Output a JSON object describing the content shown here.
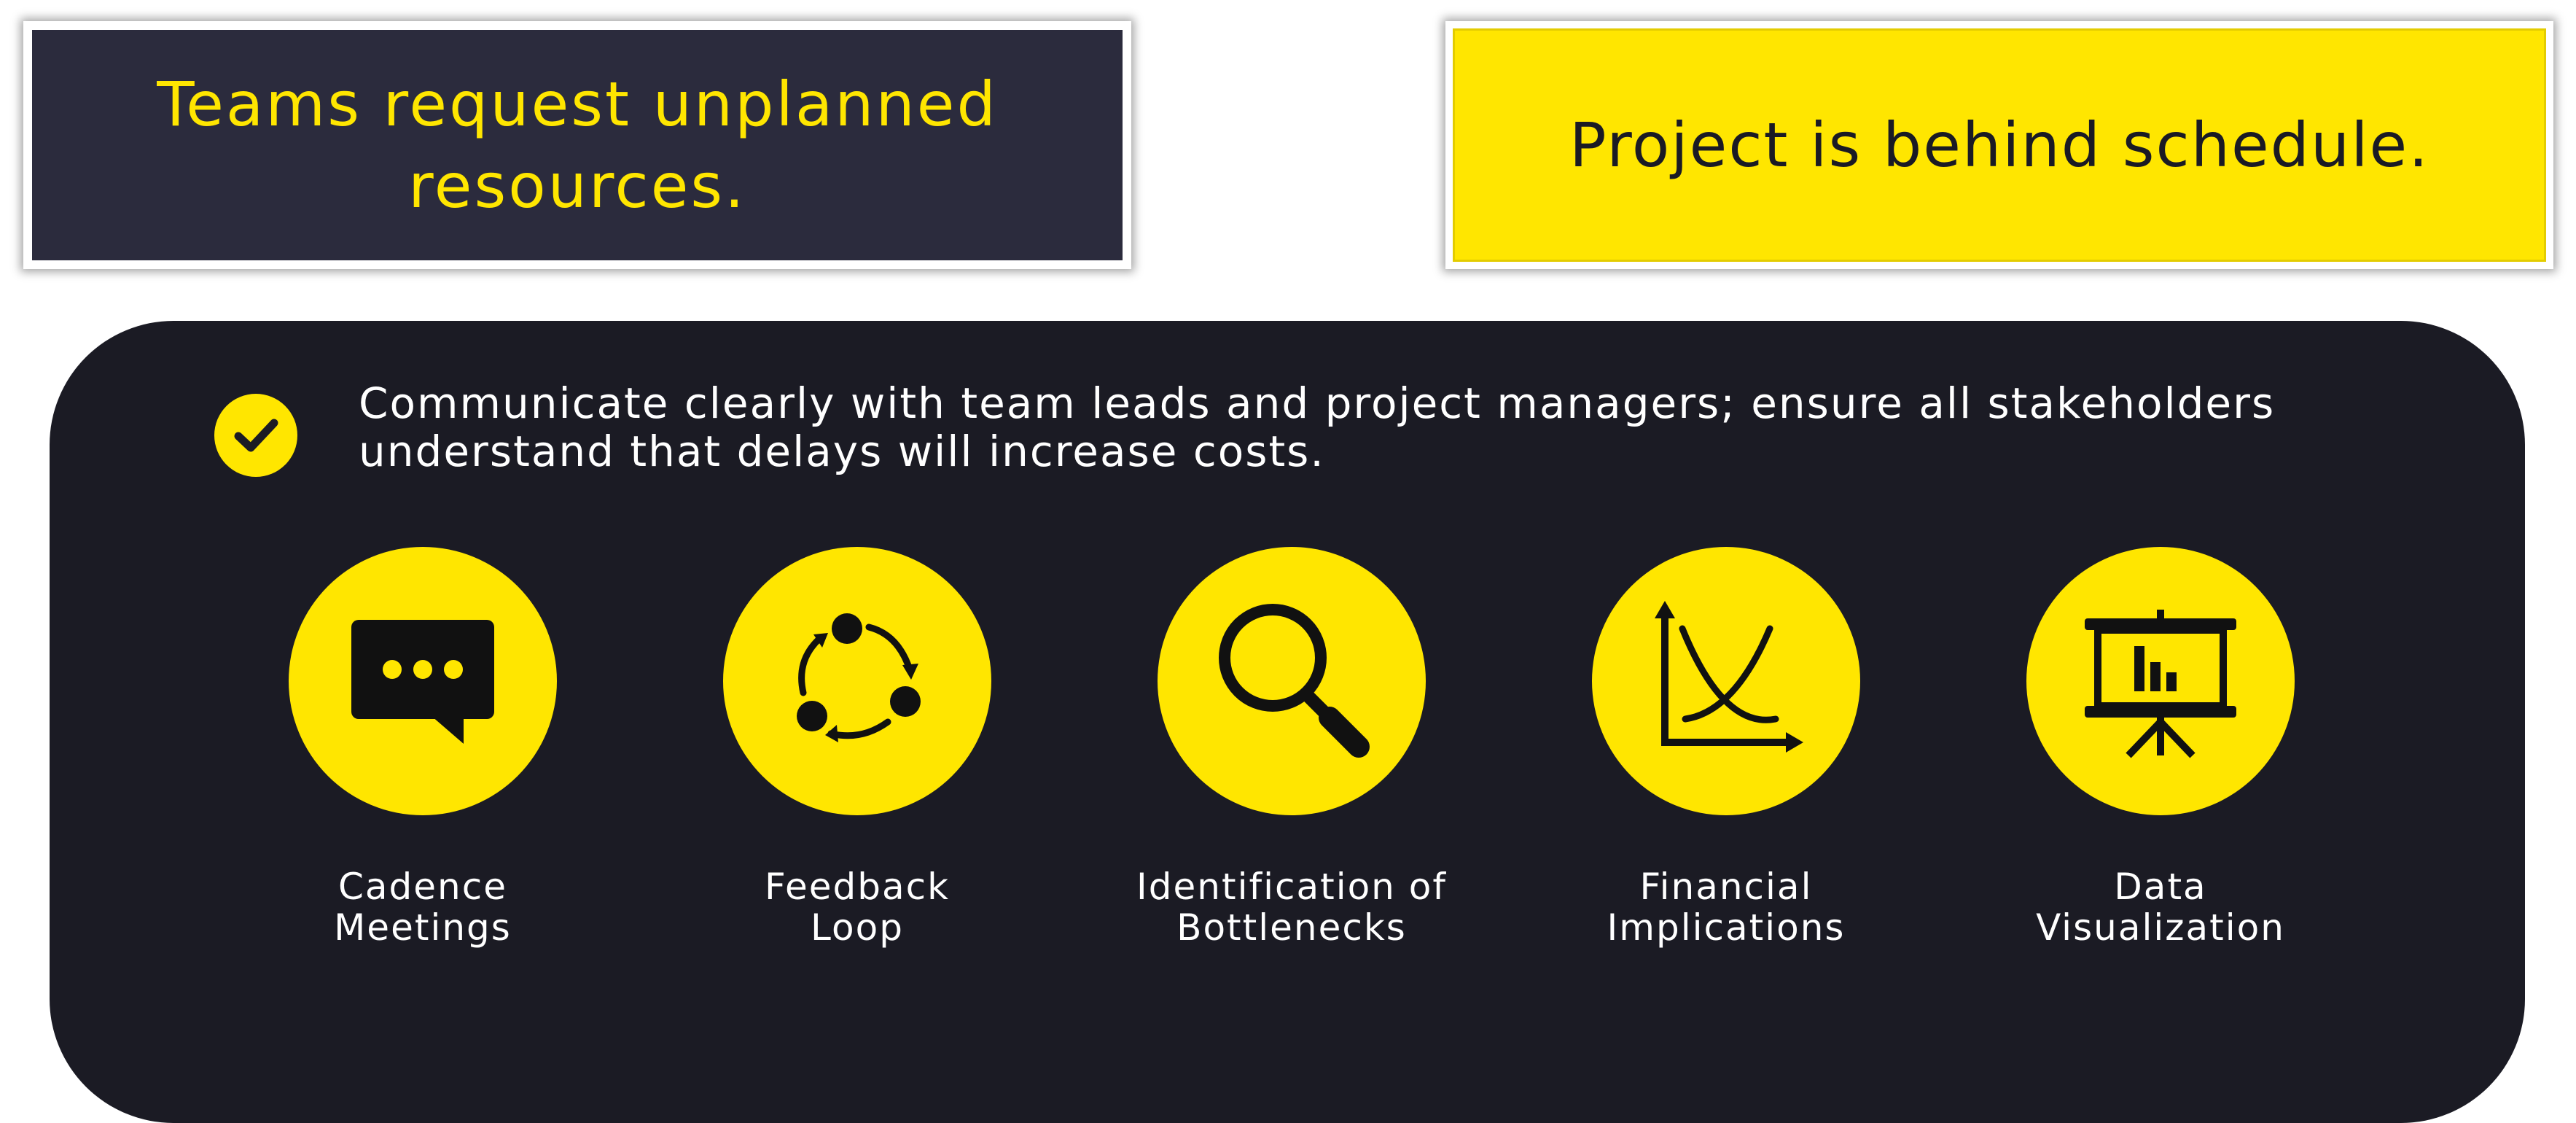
{
  "top_left_box": {
    "line1": "Teams request unplanned",
    "line2": "resources."
  },
  "top_right_box": {
    "text": "Project is behind schedule."
  },
  "statement": {
    "line1": "Communicate clearly with team leads and project managers; ensure all stakeholders",
    "line2": "understand that delays will increase costs."
  },
  "items": [
    {
      "icon": "chat-bubble-icon",
      "line1": "Cadence",
      "line2": "Meetings"
    },
    {
      "icon": "cycle-icon",
      "line1": "Feedback",
      "line2": "Loop"
    },
    {
      "icon": "magnifier-icon",
      "line1": "Identification of",
      "line2": "Bottlenecks"
    },
    {
      "icon": "chart-curves-icon",
      "line1": "Financial",
      "line2": "Implications"
    },
    {
      "icon": "presentation-board-icon",
      "line1": "Data",
      "line2": "Visualization"
    }
  ],
  "colors": {
    "accent": "#ffe600",
    "dark_panel": "#1b1b24",
    "dark_box": "#2b2b3d"
  }
}
